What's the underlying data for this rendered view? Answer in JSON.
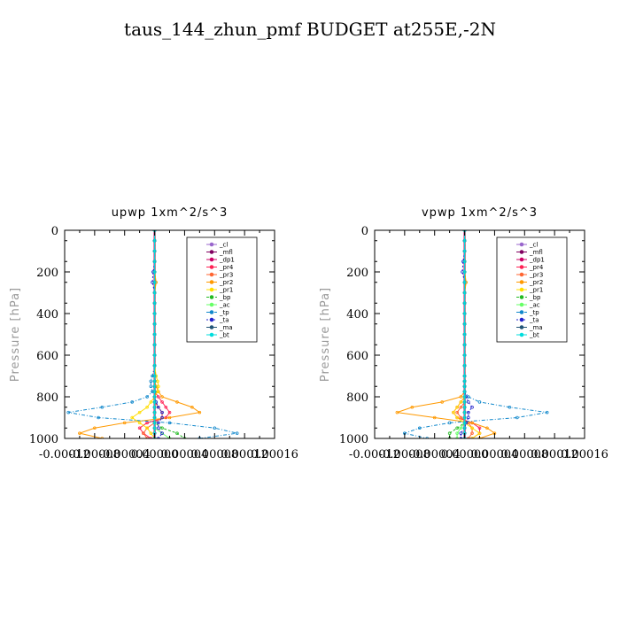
{
  "figure_title": "taus_144_zhun_pmf  BUDGET at255E,-2N",
  "colors": {
    "_cl": "#9966cc",
    "_mfl": "#800060",
    "_dp1": "#cc0066",
    "_pr4": "#ff2255",
    "_pr3": "#ff6633",
    "_pr2": "#ff9900",
    "_pr1": "#ffdd00",
    "_bp": "#22bb22",
    "_ac": "#66ff66",
    "_tp": "#1188cc",
    "_ta": "#2222cc",
    "_ma": "#225577",
    "_bt": "#00dddd"
  },
  "chart_data": [
    {
      "type": "line",
      "title": "upwp   1xm^2/s^3",
      "ylabel": "Pressure [hPa]",
      "xlim": [
        -0.00012,
        0.00016
      ],
      "ylim": [
        0,
        1000
      ],
      "y_inverted": true,
      "xticks": [
        "-0.00012",
        "-0.00008",
        "-0.00004",
        "0.00000",
        "0.00004",
        "0.00008",
        "0.00012",
        "0.00016"
      ],
      "xtick_values": [
        -0.00012,
        -8e-05,
        -4e-05,
        0,
        4e-05,
        8e-05,
        0.00012,
        0.00016
      ],
      "yticks": [
        0,
        200,
        400,
        600,
        800,
        1000
      ],
      "legend_placement": "top-right",
      "legend": [
        "_cl",
        "_mfl",
        "_dp1",
        "_pr4",
        "_pr3",
        "_pr2",
        "_pr1",
        "_bp",
        "_ac",
        "_tp",
        "_ta",
        "_ma",
        "_bt"
      ],
      "y": [
        0,
        50,
        100,
        150,
        200,
        250,
        300,
        350,
        400,
        450,
        500,
        550,
        600,
        650,
        700,
        725,
        750,
        775,
        800,
        825,
        850,
        875,
        900,
        925,
        950,
        975,
        1000
      ],
      "series": [
        {
          "name": "_cl",
          "values": [
            0,
            0,
            0,
            0,
            0,
            0,
            0,
            0,
            0,
            0,
            0,
            0,
            0,
            0,
            0,
            0,
            0,
            0,
            0,
            0,
            0,
            0,
            0,
            0,
            0,
            0,
            0
          ]
        },
        {
          "name": "_mfl",
          "values": [
            0,
            0,
            0,
            0,
            0,
            0,
            0,
            0,
            0,
            0,
            0,
            0,
            0,
            0,
            0,
            0,
            0,
            0,
            0,
            0,
            0,
            0,
            0,
            0,
            0,
            0,
            0
          ]
        },
        {
          "name": "_dp1",
          "values": [
            0,
            0,
            0,
            0,
            0,
            0,
            0,
            0,
            0,
            0,
            0,
            0,
            0,
            0,
            0,
            0,
            0,
            0,
            0,
            0,
            0,
            0,
            0,
            0,
            0,
            0,
            0
          ]
        },
        {
          "name": "_pr4",
          "values": [
            0,
            0,
            0,
            0,
            0,
            0,
            0,
            0,
            0,
            0,
            0,
            0,
            0,
            0,
            0,
            0,
            0,
            0,
            5e-06,
            1e-05,
            1.5e-05,
            2e-05,
            1.5e-05,
            -1e-05,
            -2e-05,
            -1.5e-05,
            -5e-06
          ]
        },
        {
          "name": "_pr3",
          "values": [
            0,
            0,
            0,
            0,
            0,
            0,
            0,
            0,
            0,
            0,
            0,
            0,
            0,
            0,
            0,
            0,
            0,
            0,
            0,
            0,
            5e-06,
            1e-05,
            1e-05,
            0,
            -1e-05,
            -1.5e-05,
            -1e-05
          ]
        },
        {
          "name": "_pr2",
          "values": [
            0,
            0,
            0,
            0,
            0,
            2e-06,
            0,
            0,
            0,
            0,
            0,
            0,
            0,
            0,
            0,
            0,
            2e-06,
            5e-06,
            1e-05,
            3e-05,
            5e-05,
            6e-05,
            2e-05,
            -4e-05,
            -8e-05,
            -0.0001,
            -7e-05
          ]
        },
        {
          "name": "_pr1",
          "values": [
            0,
            0,
            0,
            0,
            0,
            0,
            0,
            0,
            0,
            0,
            0,
            0,
            0,
            0,
            2e-06,
            4e-06,
            5e-06,
            4e-06,
            0,
            -5e-06,
            -1e-05,
            -2e-05,
            -3e-05,
            -2e-05,
            -1e-05,
            -5e-06,
            0
          ]
        },
        {
          "name": "_bp",
          "values": [
            0,
            0,
            0,
            0,
            0,
            0,
            0,
            0,
            0,
            0,
            0,
            0,
            0,
            0,
            0,
            0,
            0,
            0,
            0,
            0,
            0,
            0,
            0,
            0,
            1e-05,
            3e-05,
            4e-05
          ]
        },
        {
          "name": "_ac",
          "values": [
            0,
            0,
            0,
            0,
            0,
            0,
            0,
            0,
            0,
            0,
            0,
            0,
            0,
            0,
            0,
            0,
            0,
            0,
            0,
            0,
            0,
            0,
            0,
            0,
            0,
            1e-05,
            2e-05
          ]
        },
        {
          "name": "_tp",
          "values": [
            0,
            0,
            0,
            0,
            0,
            0,
            0,
            0,
            0,
            0,
            0,
            0,
            0,
            0,
            -3e-06,
            -5e-06,
            -5e-06,
            -3e-06,
            -1e-05,
            -3e-05,
            -7e-05,
            -0.000115,
            -7.5e-05,
            2e-05,
            8e-05,
            0.00011,
            6e-05
          ]
        },
        {
          "name": "_ta",
          "values": [
            0,
            0,
            0,
            0,
            -2e-06,
            -3e-06,
            0,
            0,
            0,
            0,
            0,
            0,
            0,
            0,
            0,
            0,
            0,
            0,
            0,
            2e-06,
            5e-06,
            1e-05,
            1e-05,
            5e-06,
            5e-06,
            1e-05,
            5e-06
          ]
        },
        {
          "name": "_ma",
          "values": [
            0,
            0,
            0,
            0,
            0,
            0,
            0,
            0,
            0,
            0,
            0,
            0,
            0,
            0,
            0,
            0,
            0,
            0,
            0,
            0,
            0,
            0,
            0,
            0,
            0,
            0,
            0
          ]
        },
        {
          "name": "_bt",
          "values": [
            0,
            0,
            0,
            0,
            0,
            0,
            0,
            0,
            0,
            0,
            0,
            0,
            0,
            0,
            0,
            0,
            0,
            0,
            0,
            0,
            0,
            0,
            0,
            0,
            0,
            0,
            0
          ]
        }
      ]
    },
    {
      "type": "line",
      "title": "vpwp   1xm^2/s^3",
      "ylabel": "Pressure [hPa]",
      "xlim": [
        -0.00012,
        0.00016
      ],
      "ylim": [
        0,
        1000
      ],
      "y_inverted": true,
      "xticks": [
        "-0.00012",
        "-0.00008",
        "-0.00004",
        "0.00000",
        "0.00004",
        "0.00008",
        "0.00012",
        "0.00016"
      ],
      "xtick_values": [
        -0.00012,
        -8e-05,
        -4e-05,
        0,
        4e-05,
        8e-05,
        0.00012,
        0.00016
      ],
      "yticks": [
        0,
        200,
        400,
        600,
        800,
        1000
      ],
      "legend_placement": "top-right",
      "legend": [
        "_cl",
        "_mfl",
        "_dp1",
        "_pr4",
        "_pr3",
        "_pr2",
        "_pr1",
        "_bp",
        "_ac",
        "_tp",
        "_ta",
        "_ma",
        "_bt"
      ],
      "y": [
        0,
        50,
        100,
        150,
        200,
        250,
        300,
        350,
        400,
        450,
        500,
        550,
        600,
        650,
        700,
        725,
        750,
        775,
        800,
        825,
        850,
        875,
        900,
        925,
        950,
        975,
        1000
      ],
      "series": [
        {
          "name": "_cl",
          "values": [
            0,
            0,
            0,
            0,
            0,
            0,
            0,
            0,
            0,
            0,
            0,
            0,
            0,
            0,
            0,
            0,
            0,
            0,
            0,
            0,
            0,
            0,
            0,
            0,
            0,
            0,
            0
          ]
        },
        {
          "name": "_mfl",
          "values": [
            0,
            0,
            0,
            0,
            0,
            0,
            0,
            0,
            0,
            0,
            0,
            0,
            0,
            0,
            0,
            0,
            0,
            0,
            0,
            0,
            0,
            0,
            0,
            0,
            0,
            0,
            0
          ]
        },
        {
          "name": "_dp1",
          "values": [
            0,
            0,
            0,
            0,
            0,
            0,
            0,
            0,
            0,
            0,
            0,
            0,
            0,
            0,
            0,
            0,
            0,
            0,
            0,
            0,
            0,
            0,
            0,
            0,
            0,
            0,
            0
          ]
        },
        {
          "name": "_pr4",
          "values": [
            0,
            0,
            0,
            0,
            0,
            0,
            0,
            0,
            0,
            0,
            0,
            0,
            0,
            0,
            0,
            0,
            0,
            0,
            0,
            -5e-06,
            -1e-05,
            -1.5e-05,
            -1e-05,
            1e-05,
            2e-05,
            2e-05,
            1e-05
          ]
        },
        {
          "name": "_pr3",
          "values": [
            0,
            0,
            0,
            0,
            0,
            0,
            0,
            0,
            0,
            0,
            0,
            0,
            0,
            0,
            0,
            0,
            0,
            0,
            0,
            0,
            -5e-06,
            -1e-05,
            -5e-06,
            5e-06,
            1e-05,
            1e-05,
            5e-06
          ]
        },
        {
          "name": "_pr2",
          "values": [
            0,
            0,
            0,
            0,
            0,
            2e-06,
            0,
            0,
            0,
            0,
            0,
            0,
            0,
            0,
            0,
            0,
            0,
            0,
            -5e-06,
            -3e-05,
            -7e-05,
            -9e-05,
            -4e-05,
            1e-05,
            3e-05,
            4e-05,
            2e-05
          ]
        },
        {
          "name": "_pr1",
          "values": [
            0,
            0,
            0,
            0,
            0,
            0,
            0,
            0,
            0,
            0,
            0,
            0,
            0,
            0,
            0,
            0,
            0,
            0,
            0,
            -5e-06,
            -1e-05,
            -1.5e-05,
            -1e-05,
            0,
            1e-05,
            2e-05,
            1e-05
          ]
        },
        {
          "name": "_bp",
          "values": [
            0,
            0,
            0,
            0,
            0,
            0,
            0,
            0,
            0,
            0,
            0,
            0,
            0,
            0,
            0,
            0,
            0,
            0,
            0,
            0,
            0,
            0,
            0,
            0,
            -1e-05,
            -2e-05,
            -2e-05
          ]
        },
        {
          "name": "_ac",
          "values": [
            0,
            0,
            0,
            0,
            0,
            0,
            0,
            0,
            0,
            0,
            0,
            0,
            0,
            0,
            0,
            0,
            0,
            0,
            0,
            0,
            0,
            0,
            0,
            0,
            -5e-06,
            -1e-05,
            -1e-05
          ]
        },
        {
          "name": "_tp",
          "values": [
            0,
            0,
            0,
            0,
            0,
            0,
            0,
            0,
            0,
            0,
            0,
            0,
            0,
            0,
            0,
            0,
            0,
            0,
            5e-06,
            2e-05,
            6e-05,
            0.00011,
            7e-05,
            -2e-05,
            -6e-05,
            -8e-05,
            -5e-05
          ]
        },
        {
          "name": "_ta",
          "values": [
            0,
            0,
            0,
            -2e-06,
            -3e-06,
            0,
            0,
            0,
            0,
            0,
            0,
            0,
            0,
            0,
            0,
            0,
            0,
            0,
            2e-06,
            5e-06,
            1e-05,
            5e-06,
            5e-06,
            2e-06,
            0,
            -5e-06,
            -5e-06
          ]
        },
        {
          "name": "_ma",
          "values": [
            0,
            0,
            0,
            0,
            0,
            0,
            0,
            0,
            0,
            0,
            0,
            0,
            0,
            0,
            0,
            0,
            0,
            0,
            0,
            0,
            0,
            0,
            0,
            0,
            0,
            0,
            0
          ]
        },
        {
          "name": "_bt",
          "values": [
            0,
            0,
            0,
            0,
            0,
            0,
            0,
            0,
            0,
            0,
            0,
            0,
            0,
            0,
            0,
            0,
            0,
            0,
            0,
            0,
            0,
            0,
            0,
            0,
            0,
            0,
            0
          ]
        }
      ]
    }
  ]
}
